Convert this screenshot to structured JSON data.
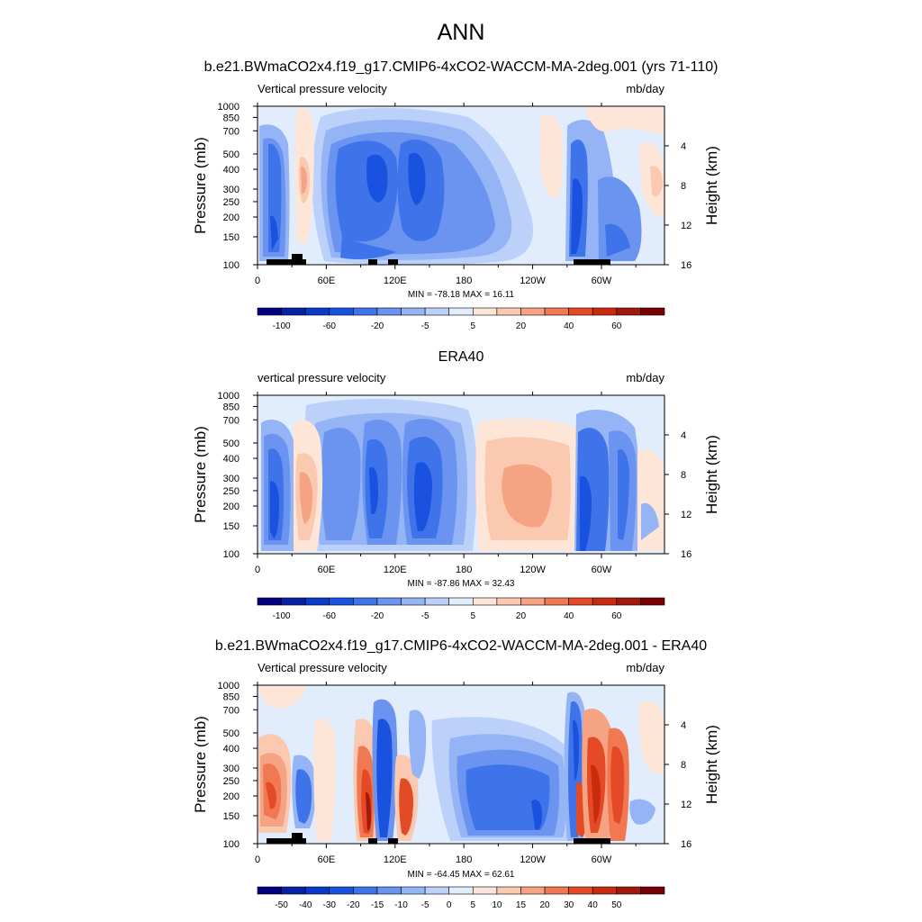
{
  "figure": {
    "title": "ANN"
  },
  "colorbars": {
    "full": {
      "colors": [
        "#00007e",
        "#0522a6",
        "#0a3ac8",
        "#1a52e0",
        "#3f73ea",
        "#6a94f0",
        "#94b4f5",
        "#bcd1fa",
        "#e1ecfd",
        "#fde6d8",
        "#fbc8b0",
        "#f6a383",
        "#f07852",
        "#e34a25",
        "#c82b0e",
        "#a0190a",
        "#780000"
      ],
      "labels": [
        "-100",
        "-60",
        "-20",
        "-5",
        "5",
        "20",
        "40",
        "60"
      ],
      "label_after_box": [
        1,
        3,
        5,
        7,
        9,
        11,
        13,
        15
      ]
    },
    "diff": {
      "colors": [
        "#00007e",
        "#0522a6",
        "#0a3ac8",
        "#1a52e0",
        "#3f73ea",
        "#6a94f0",
        "#94b4f5",
        "#bcd1fa",
        "#e1ecfd",
        "#fde6d8",
        "#fbc8b0",
        "#f6a383",
        "#f07852",
        "#e34a25",
        "#c82b0e",
        "#a0190a",
        "#780000"
      ],
      "labels": [
        "-50",
        "-40",
        "-30",
        "-20",
        "-15",
        "-10",
        "-5",
        "0",
        "5",
        "10",
        "15",
        "20",
        "30",
        "40",
        "50"
      ],
      "label_after_box": [
        1,
        2,
        3,
        4,
        5,
        6,
        7,
        8,
        9,
        10,
        11,
        12,
        13,
        14,
        15
      ]
    }
  },
  "chart_data": [
    {
      "type": "heatmap",
      "title": "b.e21.BWmaCO2x4.f19_g17.CMIP6-4xCO2-WACCM-MA-2deg.001 (yrs 71-110)",
      "left_label": "Vertical pressure velocity",
      "right_label": "mb/day",
      "ylabel": "Pressure (mb)",
      "ylabel_right": "Height (km)",
      "yticks": [
        "100",
        "150",
        "200",
        "250",
        "300",
        "400",
        "500",
        "700",
        "850",
        "1000"
      ],
      "yticks_right": [
        "4",
        "8",
        "12",
        "16"
      ],
      "xticks": [
        "0",
        "60E",
        "120E",
        "180",
        "120W",
        "60W"
      ],
      "xlim": [
        0,
        355
      ],
      "ylim": [
        1000,
        100
      ],
      "min_max": "MIN = -78.18  MAX =  16.11",
      "min": -78.18,
      "max": 16.11,
      "colorbar": "full",
      "grid": false
    },
    {
      "type": "heatmap",
      "title": "ERA40",
      "left_label": "vertical pressure velocity",
      "right_label": "mb/day",
      "ylabel": "Pressure (mb)",
      "ylabel_right": "Height (km)",
      "yticks": [
        "100",
        "150",
        "200",
        "250",
        "300",
        "400",
        "500",
        "700",
        "850",
        "1000"
      ],
      "yticks_right": [
        "4",
        "8",
        "12",
        "16"
      ],
      "xticks": [
        "0",
        "60E",
        "120E",
        "180",
        "120W",
        "60W"
      ],
      "xlim": [
        0,
        355
      ],
      "ylim": [
        1000,
        100
      ],
      "min_max": "MIN = -87.86  MAX =  32.43",
      "min": -87.86,
      "max": 32.43,
      "colorbar": "full",
      "grid": false
    },
    {
      "type": "heatmap",
      "title": "b.e21.BWmaCO2x4.f19_g17.CMIP6-4xCO2-WACCM-MA-2deg.001 - ERA40",
      "left_label": "Vertical pressure velocity",
      "right_label": "mb/day",
      "ylabel": "Pressure (mb)",
      "ylabel_right": "Height (km)",
      "yticks": [
        "100",
        "150",
        "200",
        "250",
        "300",
        "400",
        "500",
        "700",
        "850",
        "1000"
      ],
      "yticks_right": [
        "4",
        "8",
        "12",
        "16"
      ],
      "xticks": [
        "0",
        "60E",
        "120E",
        "180",
        "120W",
        "60W"
      ],
      "xlim": [
        0,
        355
      ],
      "ylim": [
        1000,
        100
      ],
      "min_max": "MIN = -64.45  MAX =  62.61",
      "min": -64.45,
      "max": 62.61,
      "colorbar": "diff",
      "grid": false
    }
  ]
}
